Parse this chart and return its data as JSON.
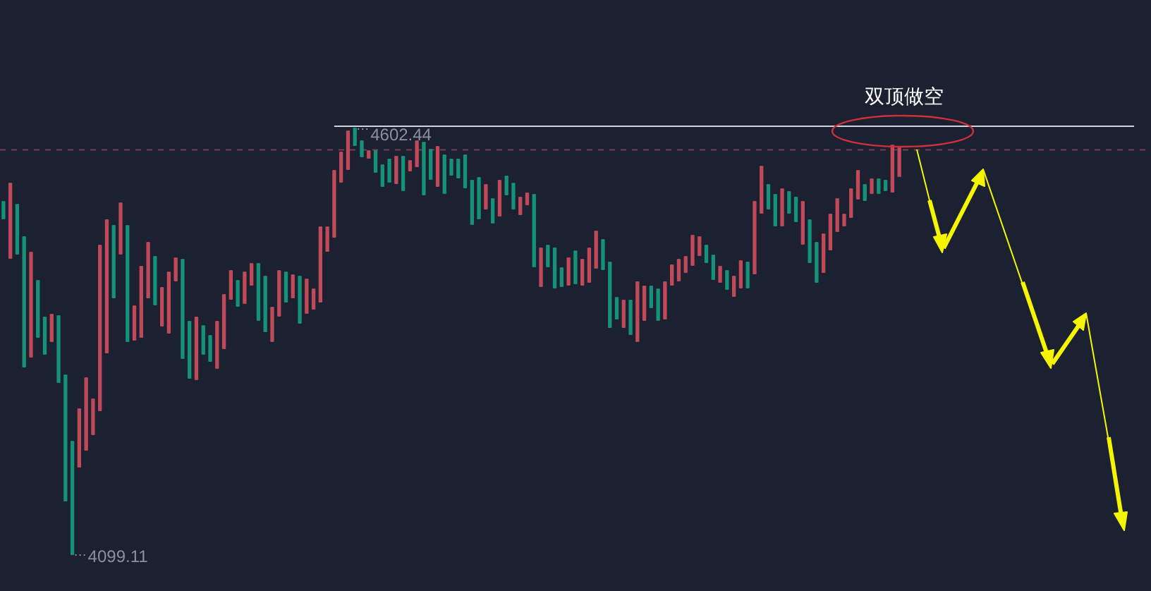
{
  "chart_data": {
    "type": "candlestick",
    "categories": [
      null,
      null,
      null,
      null,
      null,
      null,
      null,
      null,
      null,
      null,
      null,
      null,
      null,
      null,
      null,
      null,
      null,
      null,
      null,
      null,
      null,
      null,
      null,
      null,
      null,
      null,
      null,
      null,
      null,
      null,
      null,
      null,
      null,
      null,
      null,
      null,
      null,
      null,
      null,
      null,
      null,
      null,
      null,
      null,
      null,
      null,
      null,
      null,
      null,
      null,
      null,
      null,
      null,
      null,
      null,
      null,
      null,
      null,
      null,
      null,
      null,
      null,
      null,
      null,
      null,
      null,
      null,
      null,
      null,
      null,
      null,
      null,
      null,
      null,
      null,
      null,
      null,
      null,
      null,
      null,
      null,
      null,
      null,
      null,
      null,
      null,
      null,
      null,
      null,
      null,
      null,
      null,
      null,
      null,
      null,
      null,
      null,
      null,
      null,
      null,
      null,
      null,
      null,
      null,
      null,
      null,
      null,
      null,
      null,
      null,
      null,
      null,
      null,
      null,
      null,
      null,
      null,
      null,
      null,
      null,
      null,
      null,
      null,
      null,
      null,
      null,
      null,
      null,
      null,
      null,
      null
    ],
    "ohlc": [
      [
        4515.8,
        4515.8,
        4495.8,
        4495.8
      ],
      [
        4449.1,
        4537.4,
        4449.1,
        4537.4
      ],
      [
        4512.4,
        4512.4,
        4454.1,
        4454.1
      ],
      [
        4474.1,
        4474.1,
        4320.8,
        4320.8
      ],
      [
        4332.4,
        4455.8,
        4332.4,
        4455.8
      ],
      [
        4422.4,
        4422.4,
        4355.8,
        4355.8
      ],
      [
        4379.1,
        4379.1,
        4335.8,
        4335.8
      ],
      [
        4350.8,
        4382.4,
        4350.8,
        4382.4
      ],
      [
        4380.8,
        4380.8,
        4302.4,
        4302.4
      ],
      [
        4310.8,
        4310.8,
        4162.4,
        4162.4
      ],
      [
        4232.4,
        4232.4,
        4099.11,
        4099.11
      ],
      [
        4202.4,
        4270.8,
        4202.4,
        4270.8
      ],
      [
        4222.4,
        4307.4,
        4222.4,
        4307.4
      ],
      [
        4240.8,
        4282.4,
        4240.8,
        4282.4
      ],
      [
        4269.1,
        4464.1,
        4269.1,
        4464.1
      ],
      [
        4337.4,
        4494.1,
        4337.4,
        4494.1
      ],
      [
        4487.4,
        4487.4,
        4402.4,
        4402.4
      ],
      [
        4454.1,
        4514.1,
        4454.1,
        4514.1
      ],
      [
        4487.4,
        4487.4,
        4350.8,
        4350.8
      ],
      [
        4352.4,
        4392.4,
        4352.4,
        4392.4
      ],
      [
        4355.8,
        4439.1,
        4355.8,
        4439.1
      ],
      [
        4402.4,
        4467.4,
        4402.4,
        4467.4
      ],
      [
        4450.8,
        4450.8,
        4394.1,
        4394.1
      ],
      [
        4369.1,
        4414.1,
        4369.1,
        4414.1
      ],
      [
        4360.8,
        4432.4,
        4360.8,
        4432.4
      ],
      [
        4422.4,
        4449.1,
        4422.4,
        4449.1
      ],
      [
        4447.4,
        4447.4,
        4330.8,
        4330.8
      ],
      [
        4374.1,
        4374.1,
        4307.4,
        4307.4
      ],
      [
        4305.8,
        4379.1,
        4305.8,
        4379.1
      ],
      [
        4369.1,
        4369.1,
        4335.8,
        4335.8
      ],
      [
        4357.4,
        4357.4,
        4327.4,
        4327.4
      ],
      [
        4319.1,
        4374.1,
        4319.1,
        4374.1
      ],
      [
        4342.4,
        4405.8,
        4342.4,
        4405.8
      ],
      [
        4400.8,
        4434.1,
        4400.8,
        4434.1
      ],
      [
        4422.4,
        4422.4,
        4392.4,
        4392.4
      ],
      [
        4395.8,
        4432.4,
        4395.8,
        4432.4
      ],
      [
        4417.4,
        4442.4,
        4417.4,
        4442.4
      ],
      [
        4442.4,
        4442.4,
        4375.8,
        4375.8
      ],
      [
        4427.4,
        4427.4,
        4362.4,
        4362.4
      ],
      [
        4350.8,
        4390.8,
        4350.8,
        4390.8
      ],
      [
        4380.8,
        4434.1,
        4380.8,
        4434.1
      ],
      [
        4432.4,
        4432.4,
        4397.4,
        4397.4
      ],
      [
        4402.4,
        4429.1,
        4402.4,
        4429.1
      ],
      [
        4427.4,
        4427.4,
        4372.4,
        4372.4
      ],
      [
        4384.1,
        4424.1,
        4384.1,
        4424.1
      ],
      [
        4389.1,
        4412.4,
        4389.1,
        4412.4
      ],
      [
        4397.4,
        4485.8,
        4397.4,
        4485.8
      ],
      [
        4457.4,
        4485.8,
        4457.4,
        4485.8
      ],
      [
        4474.1,
        4552.4,
        4474.1,
        4552.4
      ],
      [
        4539.1,
        4574.1,
        4539.1,
        4574.1
      ],
      [
        4554.1,
        4599.1,
        4554.1,
        4599.1
      ],
      [
        4602.44,
        4602.44,
        4582.4,
        4582.4
      ],
      [
        4587.4,
        4587.4,
        4569.1,
        4569.1
      ],
      [
        4567.4,
        4575.8,
        4567.4,
        4575.8
      ],
      [
        4575.8,
        4575.8,
        4550.8,
        4550.8
      ],
      [
        4559.1,
        4559.1,
        4534.1,
        4534.1
      ],
      [
        4565.8,
        4565.8,
        4539.1,
        4539.1
      ],
      [
        4537.4,
        4569.1,
        4537.4,
        4569.1
      ],
      [
        4569.1,
        4569.1,
        4529.1,
        4529.1
      ],
      [
        4552.4,
        4564.1,
        4552.4,
        4564.1
      ],
      [
        4557.4,
        4587.4,
        4557.4,
        4587.4
      ],
      [
        4585.8,
        4585.8,
        4524.1,
        4524.1
      ],
      [
        4577.4,
        4577.4,
        4542.4,
        4542.4
      ],
      [
        4534.1,
        4580.8,
        4534.1,
        4580.8
      ],
      [
        4570.8,
        4570.8,
        4525.8,
        4525.8
      ],
      [
        4565.8,
        4565.8,
        4547.4,
        4547.4
      ],
      [
        4565.8,
        4565.8,
        4544.1,
        4544.1
      ],
      [
        4570.8,
        4570.8,
        4532.4,
        4532.4
      ],
      [
        4540.8,
        4540.8,
        4489.1,
        4489.1
      ],
      [
        4544.1,
        4544.1,
        4495.8,
        4495.8
      ],
      [
        4507.4,
        4535.8,
        4507.4,
        4535.8
      ],
      [
        4519.1,
        4519.1,
        4490.8,
        4490.8
      ],
      [
        4499.1,
        4540.8,
        4499.1,
        4540.8
      ],
      [
        4545.8,
        4545.8,
        4524.1,
        4524.1
      ],
      [
        4537.4,
        4537.4,
        4507.4,
        4507.4
      ],
      [
        4500.8,
        4520.8,
        4500.8,
        4520.8
      ],
      [
        4512.4,
        4525.8,
        4512.4,
        4525.8
      ],
      [
        4524.1,
        4524.1,
        4439.1,
        4439.1
      ],
      [
        4415.8,
        4460.8,
        4415.8,
        4460.8
      ],
      [
        4464.1,
        4464.1,
        4439.1,
        4439.1
      ],
      [
        4460.8,
        4460.8,
        4414.1,
        4414.1
      ],
      [
        4437.4,
        4437.4,
        4415.8,
        4415.8
      ],
      [
        4417.4,
        4449.1,
        4417.4,
        4449.1
      ],
      [
        4457.4,
        4457.4,
        4419.1,
        4419.1
      ],
      [
        4417.4,
        4447.4,
        4417.4,
        4447.4
      ],
      [
        4420.8,
        4460.8,
        4420.8,
        4460.8
      ],
      [
        4437.4,
        4480.8,
        4437.4,
        4480.8
      ],
      [
        4470.8,
        4470.8,
        4435.8,
        4435.8
      ],
      [
        4444.1,
        4444.1,
        4367.4,
        4367.4
      ],
      [
        4402.4,
        4402.4,
        4377.4,
        4377.4
      ],
      [
        4367.4,
        4399.1,
        4367.4,
        4399.1
      ],
      [
        4399.1,
        4399.1,
        4359.1,
        4359.1
      ],
      [
        4350.8,
        4420.8,
        4350.8,
        4420.8
      ],
      [
        4375.8,
        4415.8,
        4375.8,
        4415.8
      ],
      [
        4415.8,
        4415.8,
        4390.8,
        4390.8
      ],
      [
        4412.4,
        4412.4,
        4375.8,
        4375.8
      ],
      [
        4377.4,
        4420.8,
        4377.4,
        4420.8
      ],
      [
        4417.4,
        4440.8,
        4417.4,
        4440.8
      ],
      [
        4422.4,
        4447.4,
        4422.4,
        4447.4
      ],
      [
        4432.4,
        4450.8,
        4432.4,
        4450.8
      ],
      [
        4440.8,
        4475.8,
        4440.8,
        4475.8
      ],
      [
        4452.4,
        4474.1,
        4452.4,
        4474.1
      ],
      [
        4464.1,
        4464.1,
        4444.1,
        4444.1
      ],
      [
        4452.4,
        4452.4,
        4424.1,
        4424.1
      ],
      [
        4420.8,
        4439.1,
        4420.8,
        4439.1
      ],
      [
        4434.1,
        4434.1,
        4412.4,
        4412.4
      ],
      [
        4404.1,
        4427.4,
        4404.1,
        4427.4
      ],
      [
        4414.1,
        4445.8,
        4414.1,
        4445.8
      ],
      [
        4444.1,
        4444.1,
        4414.1,
        4414.1
      ],
      [
        4430.8,
        4515.8,
        4430.8,
        4515.8
      ],
      [
        4502.4,
        4557.4,
        4502.4,
        4557.4
      ],
      [
        4535.8,
        4535.8,
        4507.4,
        4507.4
      ],
      [
        4524.1,
        4524.1,
        4487.4,
        4487.4
      ],
      [
        4487.4,
        4530.8,
        4487.4,
        4530.8
      ],
      [
        4527.4,
        4527.4,
        4502.4,
        4502.4
      ],
      [
        4520.8,
        4520.8,
        4492.4,
        4492.4
      ],
      [
        4465.8,
        4515.8,
        4465.8,
        4515.8
      ],
      [
        4494.1,
        4494.1,
        4444.1,
        4444.1
      ],
      [
        4467.4,
        4467.4,
        4420.8,
        4420.8
      ],
      [
        4432.4,
        4477.4,
        4432.4,
        4477.4
      ],
      [
        4459.1,
        4500.8,
        4459.1,
        4500.8
      ],
      [
        4480.8,
        4519.1,
        4480.8,
        4519.1
      ],
      [
        4487.4,
        4500.8,
        4487.4,
        4500.8
      ],
      [
        4497.4,
        4530.8,
        4497.4,
        4530.8
      ],
      [
        4519.1,
        4552.4,
        4519.1,
        4552.4
      ],
      [
        4535.8,
        4535.8,
        4517.4,
        4517.4
      ],
      [
        4525.8,
        4542.4,
        4525.8,
        4542.4
      ],
      [
        4542.4,
        4542.4,
        4525.8,
        4525.8
      ],
      [
        4540.8,
        4540.8,
        4529.1,
        4529.1
      ],
      [
        4527.4,
        4582.4,
        4527.4,
        4582.4
      ],
      [
        4545.8,
        4579.1,
        4545.8,
        4579.1
      ]
    ],
    "colors": [
      "#16917a",
      "#c04a5a",
      "#16917a",
      "#16917a",
      "#c04a5a",
      "#16917a",
      "#16917a",
      "#c04a5a",
      "#16917a",
      "#16917a",
      "#16917a",
      "#c04a5a",
      "#c04a5a",
      "#c04a5a",
      "#c04a5a",
      "#c04a5a",
      "#16917a",
      "#c04a5a",
      "#16917a",
      "#c04a5a",
      "#c04a5a",
      "#c04a5a",
      "#16917a",
      "#c04a5a",
      "#c04a5a",
      "#c04a5a",
      "#16917a",
      "#16917a",
      "#c04a5a",
      "#16917a",
      "#16917a",
      "#c04a5a",
      "#c04a5a",
      "#c04a5a",
      "#16917a",
      "#c04a5a",
      "#c04a5a",
      "#16917a",
      "#16917a",
      "#c04a5a",
      "#c04a5a",
      "#16917a",
      "#c04a5a",
      "#16917a",
      "#c04a5a",
      "#c04a5a",
      "#c04a5a",
      "#c04a5a",
      "#c04a5a",
      "#c04a5a",
      "#c04a5a",
      "#16917a",
      "#16917a",
      "#c04a5a",
      "#16917a",
      "#16917a",
      "#16917a",
      "#c04a5a",
      "#16917a",
      "#c04a5a",
      "#c04a5a",
      "#16917a",
      "#16917a",
      "#c04a5a",
      "#16917a",
      "#16917a",
      "#16917a",
      "#16917a",
      "#16917a",
      "#16917a",
      "#c04a5a",
      "#16917a",
      "#c04a5a",
      "#16917a",
      "#16917a",
      "#c04a5a",
      "#c04a5a",
      "#16917a",
      "#c04a5a",
      "#16917a",
      "#16917a",
      "#16917a",
      "#c04a5a",
      "#16917a",
      "#c04a5a",
      "#c04a5a",
      "#c04a5a",
      "#16917a",
      "#16917a",
      "#16917a",
      "#c04a5a",
      "#16917a",
      "#c04a5a",
      "#c04a5a",
      "#16917a",
      "#16917a",
      "#c04a5a",
      "#c04a5a",
      "#c04a5a",
      "#c04a5a",
      "#c04a5a",
      "#c04a5a",
      "#16917a",
      "#16917a",
      "#c04a5a",
      "#16917a",
      "#c04a5a",
      "#c04a5a",
      "#16917a",
      "#c04a5a",
      "#c04a5a",
      "#16917a",
      "#16917a",
      "#c04a5a",
      "#16917a",
      "#16917a",
      "#c04a5a",
      "#16917a",
      "#16917a",
      "#c04a5a",
      "#c04a5a",
      "#c04a5a",
      "#c04a5a",
      "#c04a5a",
      "#c04a5a",
      "#16917a",
      "#c04a5a",
      "#16917a",
      "#16917a",
      "#c04a5a",
      "#c04a5a"
    ],
    "annotations": [
      "双顶做空",
      "4602.44",
      "4099.11"
    ],
    "ref_lines": [
      {
        "axis": "y",
        "value": 4605,
        "label": null,
        "color": "#d0d4dc",
        "line_style": "solid"
      },
      {
        "axis": "y",
        "value": 4577,
        "label": null,
        "color": "#7a3f4c",
        "line_style": "dashed"
      }
    ],
    "legend": false
  }
}
